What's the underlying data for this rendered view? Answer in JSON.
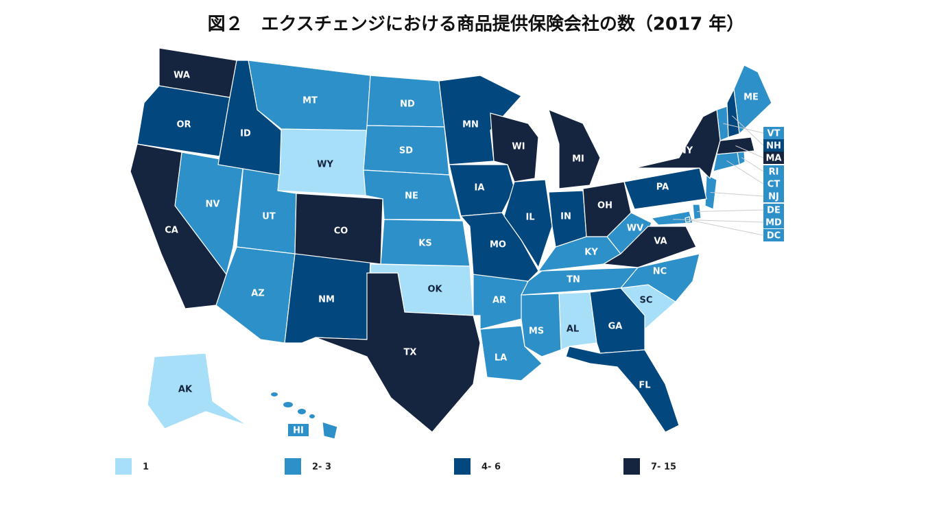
{
  "title": "図２　エクスチェンジにおける商品提供保険会社の数（2017 年）",
  "legend": [
    {
      "label": "1",
      "color": "#a7dff8",
      "states": [
        "WY",
        "OK",
        "AL",
        "SC",
        "AK"
      ]
    },
    {
      "label": "2- 3",
      "color": "#2e90c8",
      "states": [
        "MT",
        "ND",
        "SD",
        "NE",
        "KS",
        "NV",
        "UT",
        "AZ",
        "AR",
        "LA",
        "MS",
        "TN",
        "KY",
        "WV",
        "NC",
        "ME",
        "VT",
        "RI",
        "CT",
        "NJ",
        "DE",
        "MD",
        "DC",
        "HI"
      ]
    },
    {
      "label": "4- 6",
      "color": "#03477f",
      "states": [
        "OR",
        "ID",
        "MN",
        "IA",
        "MO",
        "IL",
        "IN",
        "PA",
        "GA",
        "FL",
        "NM",
        "NH"
      ]
    },
    {
      "label": "7- 15",
      "color": "#15243f",
      "states": [
        "WA",
        "CA",
        "CO",
        "TX",
        "WI",
        "MI",
        "OH",
        "VA",
        "NY",
        "MA"
      ]
    }
  ]
}
